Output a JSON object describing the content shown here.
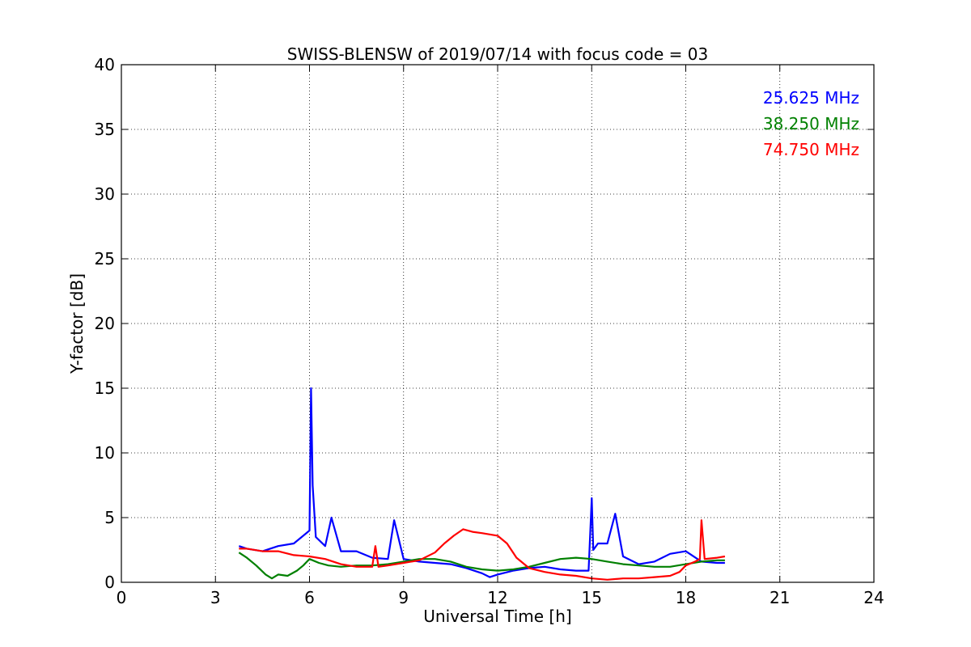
{
  "chart_data": {
    "type": "line",
    "title": "SWISS-BLENSW of 2019/07/14 with focus code = 03",
    "xlabel": "Universal Time [h]",
    "ylabel": "Y-factor [dB]",
    "xlim": [
      0,
      24
    ],
    "ylim": [
      0,
      40
    ],
    "xticks": [
      0,
      3,
      6,
      9,
      12,
      15,
      18,
      21,
      24
    ],
    "yticks": [
      0,
      5,
      10,
      15,
      20,
      25,
      30,
      35,
      40
    ],
    "grid": true,
    "legend_position": "top-right",
    "series": [
      {
        "name": "25.625 MHz",
        "color": "#0000ff",
        "x": [
          3.75,
          4.0,
          4.5,
          5.0,
          5.5,
          5.8,
          6.0,
          6.05,
          6.1,
          6.2,
          6.5,
          6.7,
          7.0,
          7.5,
          8.0,
          8.5,
          8.7,
          9.0,
          9.5,
          10.0,
          10.5,
          11.0,
          11.5,
          11.75,
          12.0,
          12.5,
          13.0,
          13.5,
          14.0,
          14.5,
          14.9,
          15.0,
          15.05,
          15.2,
          15.5,
          15.75,
          16.0,
          16.5,
          17.0,
          17.5,
          18.0,
          18.5,
          19.0,
          19.25
        ],
        "y": [
          2.8,
          2.6,
          2.4,
          2.8,
          3.0,
          3.6,
          4.0,
          15.0,
          7.5,
          3.5,
          2.8,
          5.0,
          2.4,
          2.4,
          1.9,
          1.8,
          4.8,
          1.8,
          1.6,
          1.5,
          1.4,
          1.1,
          0.7,
          0.4,
          0.6,
          0.9,
          1.1,
          1.2,
          1.0,
          0.9,
          0.9,
          6.5,
          2.5,
          3.0,
          3.0,
          5.3,
          2.0,
          1.4,
          1.6,
          2.2,
          2.4,
          1.6,
          1.5,
          1.5
        ]
      },
      {
        "name": "38.250 MHz",
        "color": "#008000",
        "x": [
          3.75,
          4.0,
          4.3,
          4.6,
          4.8,
          5.0,
          5.3,
          5.6,
          5.8,
          6.0,
          6.3,
          6.6,
          7.0,
          7.5,
          8.0,
          8.5,
          9.0,
          9.5,
          10.0,
          10.5,
          11.0,
          11.5,
          12.0,
          12.5,
          13.0,
          13.5,
          14.0,
          14.5,
          15.0,
          15.5,
          16.0,
          16.5,
          17.0,
          17.5,
          18.0,
          18.5,
          19.0,
          19.25
        ],
        "y": [
          2.3,
          1.9,
          1.3,
          0.6,
          0.3,
          0.6,
          0.5,
          0.9,
          1.3,
          1.8,
          1.5,
          1.3,
          1.2,
          1.3,
          1.3,
          1.4,
          1.6,
          1.8,
          1.8,
          1.6,
          1.2,
          1.0,
          0.9,
          1.0,
          1.2,
          1.5,
          1.8,
          1.9,
          1.8,
          1.6,
          1.4,
          1.3,
          1.2,
          1.2,
          1.4,
          1.6,
          1.7,
          1.7
        ]
      },
      {
        "name": "74.750 MHz",
        "color": "#ff0000",
        "x": [
          3.75,
          4.0,
          4.5,
          5.0,
          5.5,
          6.0,
          6.5,
          7.0,
          7.5,
          8.0,
          8.1,
          8.2,
          8.5,
          9.0,
          9.5,
          10.0,
          10.3,
          10.6,
          10.9,
          11.2,
          11.5,
          12.0,
          12.3,
          12.6,
          13.0,
          13.5,
          14.0,
          14.5,
          15.0,
          15.5,
          16.0,
          16.5,
          17.0,
          17.5,
          17.8,
          18.0,
          18.3,
          18.45,
          18.5,
          18.6,
          19.0,
          19.25
        ],
        "y": [
          2.6,
          2.6,
          2.4,
          2.4,
          2.1,
          2.0,
          1.8,
          1.4,
          1.2,
          1.2,
          2.8,
          1.2,
          1.3,
          1.5,
          1.7,
          2.3,
          3.0,
          3.6,
          4.1,
          3.9,
          3.8,
          3.6,
          3.0,
          1.9,
          1.1,
          0.8,
          0.6,
          0.5,
          0.3,
          0.2,
          0.3,
          0.3,
          0.4,
          0.5,
          0.8,
          1.3,
          1.6,
          1.8,
          4.8,
          1.8,
          1.9,
          2.0
        ]
      }
    ]
  }
}
